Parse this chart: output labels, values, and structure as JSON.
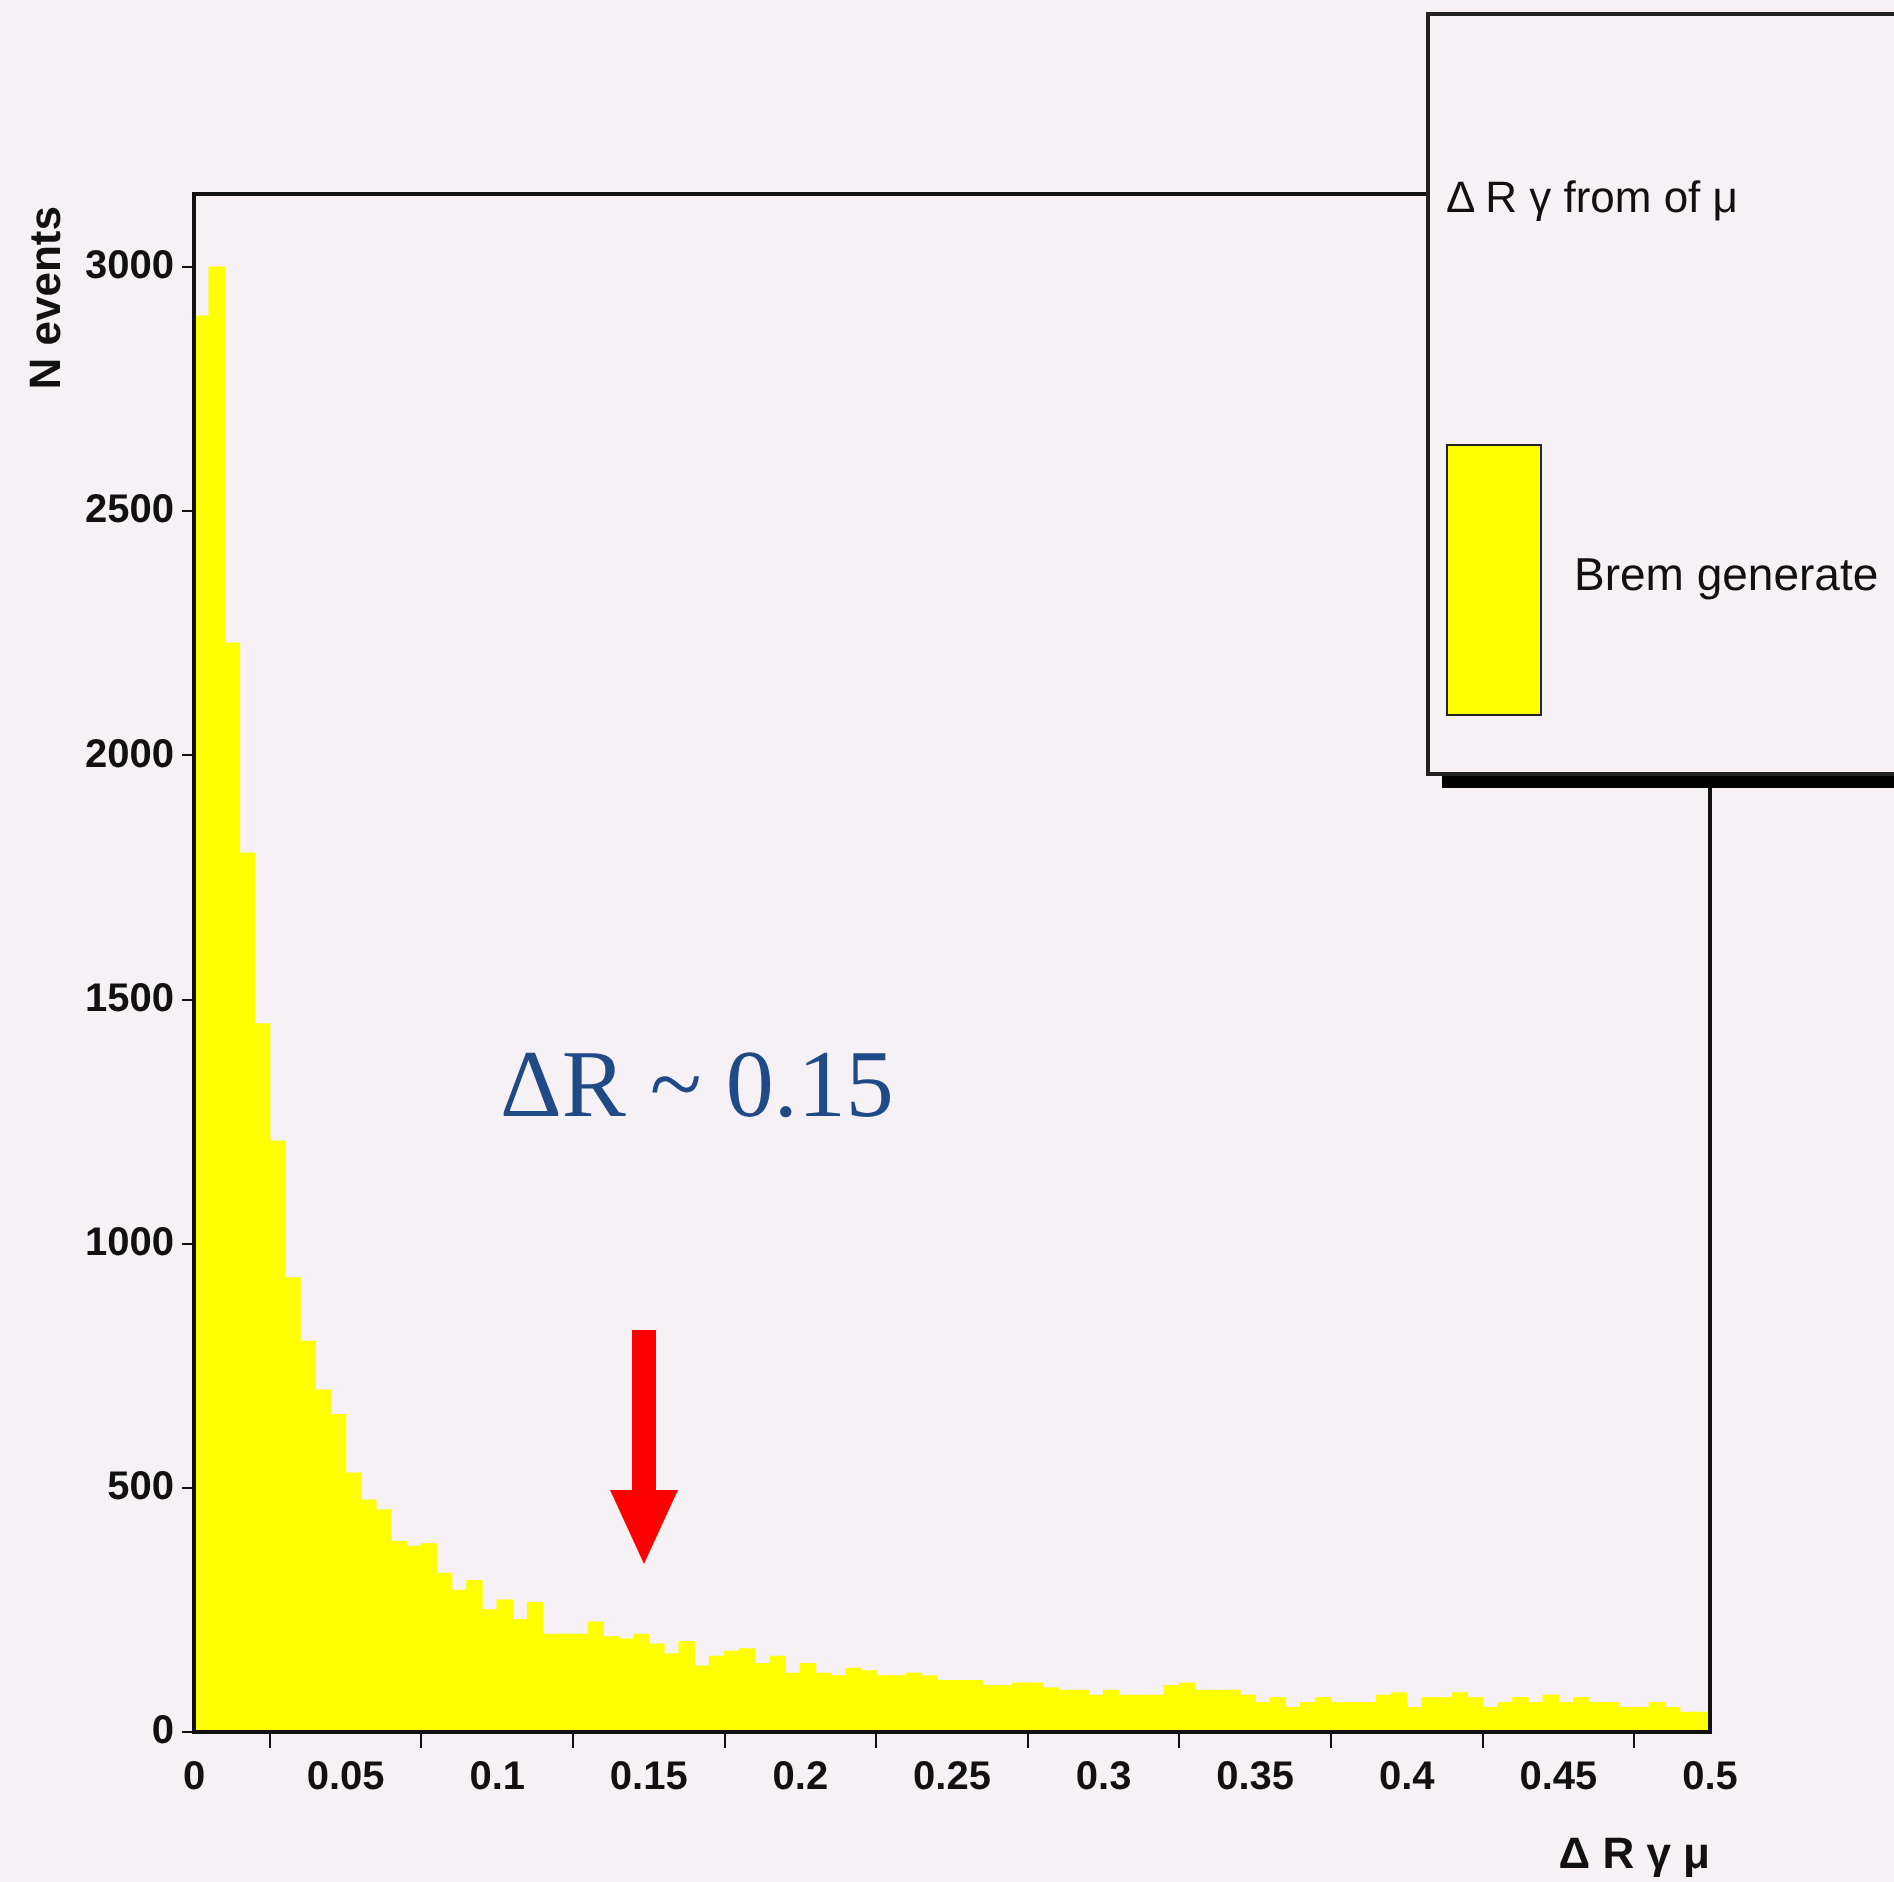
{
  "chart_data": {
    "type": "histogram",
    "xlabel": "Δ R γ μ",
    "ylabel": "N events",
    "legend_title": "Δ R γ from of μ",
    "legend": "top right",
    "bins": [
      0,
      0.005,
      0.01,
      0.015,
      0.02,
      0.025,
      0.03,
      0.035,
      0.04,
      0.045,
      0.05,
      0.055,
      0.06,
      0.065,
      0.07,
      0.075,
      0.08,
      0.085,
      0.09,
      0.095,
      0.1,
      0.105,
      0.11,
      0.115,
      0.12,
      0.125,
      0.13,
      0.135,
      0.14,
      0.145,
      0.15,
      0.155,
      0.16,
      0.165,
      0.17,
      0.175,
      0.18,
      0.185,
      0.19,
      0.195,
      0.2,
      0.205,
      0.21,
      0.215,
      0.22,
      0.225,
      0.23,
      0.235,
      0.24,
      0.245,
      0.25,
      0.255,
      0.26,
      0.265,
      0.27,
      0.275,
      0.28,
      0.285,
      0.29,
      0.295,
      0.3,
      0.305,
      0.31,
      0.315,
      0.32,
      0.325,
      0.33,
      0.335,
      0.34,
      0.345,
      0.35,
      0.355,
      0.36,
      0.365,
      0.37,
      0.375,
      0.38,
      0.385,
      0.39,
      0.395,
      0.4,
      0.405,
      0.41,
      0.415,
      0.42,
      0.425,
      0.43,
      0.435,
      0.44,
      0.445,
      0.45,
      0.455,
      0.46,
      0.465,
      0.47,
      0.475,
      0.48,
      0.485,
      0.49,
      0.495,
      0.5
    ],
    "series": [
      {
        "name": "Brem generate",
        "color": "#ffff00",
        "values": [
          2900,
          3000,
          2230,
          1800,
          1450,
          1210,
          930,
          800,
          700,
          650,
          530,
          475,
          455,
          390,
          380,
          385,
          325,
          290,
          310,
          250,
          270,
          230,
          265,
          200,
          200,
          200,
          225,
          195,
          190,
          200,
          180,
          160,
          185,
          135,
          155,
          165,
          170,
          140,
          155,
          120,
          140,
          120,
          115,
          130,
          125,
          115,
          115,
          120,
          115,
          105,
          105,
          105,
          95,
          95,
          100,
          100,
          90,
          85,
          85,
          75,
          85,
          75,
          75,
          75,
          95,
          100,
          85,
          85,
          85,
          75,
          60,
          70,
          50,
          60,
          70,
          60,
          60,
          60,
          75,
          80,
          50,
          70,
          70,
          80,
          70,
          50,
          60,
          70,
          60,
          75,
          60,
          70,
          60,
          60,
          50,
          50,
          60,
          50,
          40,
          40
        ]
      }
    ],
    "xlim": [
      0,
      0.5
    ],
    "xticks": [
      0,
      0.05,
      0.1,
      0.15,
      0.2,
      0.25,
      0.3,
      0.35,
      0.4,
      0.45,
      0.5
    ],
    "ylim": [
      0,
      3150
    ],
    "yticks": [
      0,
      500,
      1000,
      1500,
      2000,
      2500,
      3000
    ],
    "annotations": [
      "ΔR ~ 0.15"
    ]
  }
}
